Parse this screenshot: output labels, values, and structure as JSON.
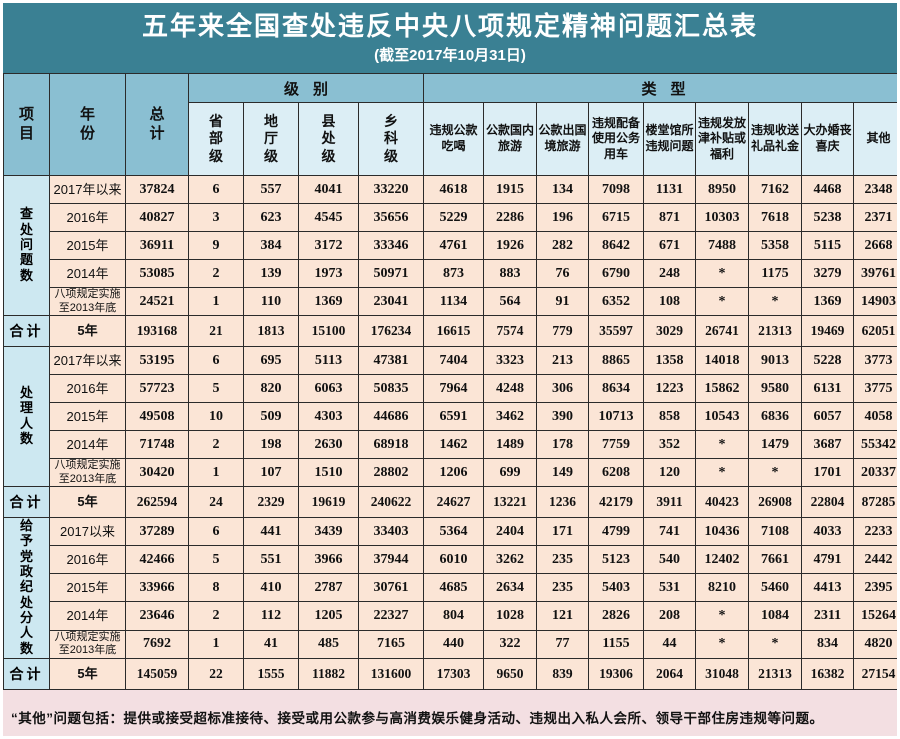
{
  "title": "五年来全国查处违反中央八项规定精神问题汇总表",
  "subtitle": "(截至2017年10月31日)",
  "header": {
    "item": "项目",
    "year": "年份",
    "total": "总计",
    "level_group": "级别",
    "type_group": "类型",
    "level_cols": [
      "省部级",
      "地厅级",
      "县处级",
      "乡科级"
    ],
    "type_cols": [
      "违规公款吃喝",
      "公款国内旅游",
      "公款出国境旅游",
      "违规配备使用公务用车",
      "楼堂馆所违规问题",
      "违规发放津补贴或福利",
      "违规收送礼品礼金",
      "大办婚丧喜庆",
      "其他"
    ]
  },
  "sections": [
    {
      "label": "查处问题数",
      "rows": [
        {
          "year": "2017年以来",
          "values": [
            "37824",
            "6",
            "557",
            "4041",
            "33220",
            "4618",
            "1915",
            "134",
            "7098",
            "1131",
            "8950",
            "7162",
            "4468",
            "2348"
          ]
        },
        {
          "year": "2016年",
          "values": [
            "40827",
            "3",
            "623",
            "4545",
            "35656",
            "5229",
            "2286",
            "196",
            "6715",
            "871",
            "10303",
            "7618",
            "5238",
            "2371"
          ]
        },
        {
          "year": "2015年",
          "values": [
            "36911",
            "9",
            "384",
            "3172",
            "33346",
            "4761",
            "1926",
            "282",
            "8642",
            "671",
            "7488",
            "5358",
            "5115",
            "2668"
          ]
        },
        {
          "year": "2014年",
          "values": [
            "53085",
            "2",
            "139",
            "1973",
            "50971",
            "873",
            "883",
            "76",
            "6790",
            "248",
            "*",
            "1175",
            "3279",
            "39761"
          ]
        },
        {
          "year": "八项规定实施至2013年底",
          "values": [
            "24521",
            "1",
            "110",
            "1369",
            "23041",
            "1134",
            "564",
            "91",
            "6352",
            "108",
            "*",
            "*",
            "1369",
            "14903"
          ]
        }
      ],
      "total_row": {
        "label": "合计",
        "year": "5年",
        "values": [
          "193168",
          "21",
          "1813",
          "15100",
          "176234",
          "16615",
          "7574",
          "779",
          "35597",
          "3029",
          "26741",
          "21313",
          "19469",
          "62051"
        ]
      }
    },
    {
      "label": "处理人数",
      "rows": [
        {
          "year": "2017年以来",
          "values": [
            "53195",
            "6",
            "695",
            "5113",
            "47381",
            "7404",
            "3323",
            "213",
            "8865",
            "1358",
            "14018",
            "9013",
            "5228",
            "3773"
          ]
        },
        {
          "year": "2016年",
          "values": [
            "57723",
            "5",
            "820",
            "6063",
            "50835",
            "7964",
            "4248",
            "306",
            "8634",
            "1223",
            "15862",
            "9580",
            "6131",
            "3775"
          ]
        },
        {
          "year": "2015年",
          "values": [
            "49508",
            "10",
            "509",
            "4303",
            "44686",
            "6591",
            "3462",
            "390",
            "10713",
            "858",
            "10543",
            "6836",
            "6057",
            "4058"
          ]
        },
        {
          "year": "2014年",
          "values": [
            "71748",
            "2",
            "198",
            "2630",
            "68918",
            "1462",
            "1489",
            "178",
            "7759",
            "352",
            "*",
            "1479",
            "3687",
            "55342"
          ]
        },
        {
          "year": "八项规定实施至2013年底",
          "values": [
            "30420",
            "1",
            "107",
            "1510",
            "28802",
            "1206",
            "699",
            "149",
            "6208",
            "120",
            "*",
            "*",
            "1701",
            "20337"
          ]
        }
      ],
      "total_row": {
        "label": "合计",
        "year": "5年",
        "values": [
          "262594",
          "24",
          "2329",
          "19619",
          "240622",
          "24627",
          "13221",
          "1236",
          "42179",
          "3911",
          "40423",
          "26908",
          "22804",
          "87285"
        ]
      }
    },
    {
      "label": "给予党政纪处分人数",
      "rows": [
        {
          "year": "2017以来",
          "values": [
            "37289",
            "6",
            "441",
            "3439",
            "33403",
            "5364",
            "2404",
            "171",
            "4799",
            "741",
            "10436",
            "7108",
            "4033",
            "2233"
          ]
        },
        {
          "year": "2016年",
          "values": [
            "42466",
            "5",
            "551",
            "3966",
            "37944",
            "6010",
            "3262",
            "235",
            "5123",
            "540",
            "12402",
            "7661",
            "4791",
            "2442"
          ]
        },
        {
          "year": "2015年",
          "values": [
            "33966",
            "8",
            "410",
            "2787",
            "30761",
            "4685",
            "2634",
            "235",
            "5403",
            "531",
            "8210",
            "5460",
            "4413",
            "2395"
          ]
        },
        {
          "year": "2014年",
          "values": [
            "23646",
            "2",
            "112",
            "1205",
            "22327",
            "804",
            "1028",
            "121",
            "2826",
            "208",
            "*",
            "1084",
            "2311",
            "15264"
          ]
        },
        {
          "year": "八项规定实施至2013年底",
          "values": [
            "7692",
            "1",
            "41",
            "485",
            "7165",
            "440",
            "322",
            "77",
            "1155",
            "44",
            "*",
            "*",
            "834",
            "4820"
          ]
        }
      ],
      "total_row": {
        "label": "合计",
        "year": "5年",
        "values": [
          "145059",
          "22",
          "1555",
          "11882",
          "131600",
          "17303",
          "9650",
          "839",
          "19306",
          "2064",
          "31048",
          "21313",
          "16382",
          "27154"
        ]
      }
    }
  ],
  "footnote": "“其他”问题包括：提供或接受超标准接待、接受或用公款参与高消费娱乐健身活动、违规出入私人会所、领导干部住房违规等问题。",
  "colors": {
    "title_band": "#3a8093",
    "header_blue": "#8abfd2",
    "subheader_blue": "#dceef5",
    "section_label_blue": "#cde8f1",
    "total_label_blue": "#c9e5ef",
    "cell_peach": "#fbe5d6",
    "footer_pink": "#f3dfe2",
    "border": "#2b2b2b",
    "title_text": "#ffffff"
  }
}
